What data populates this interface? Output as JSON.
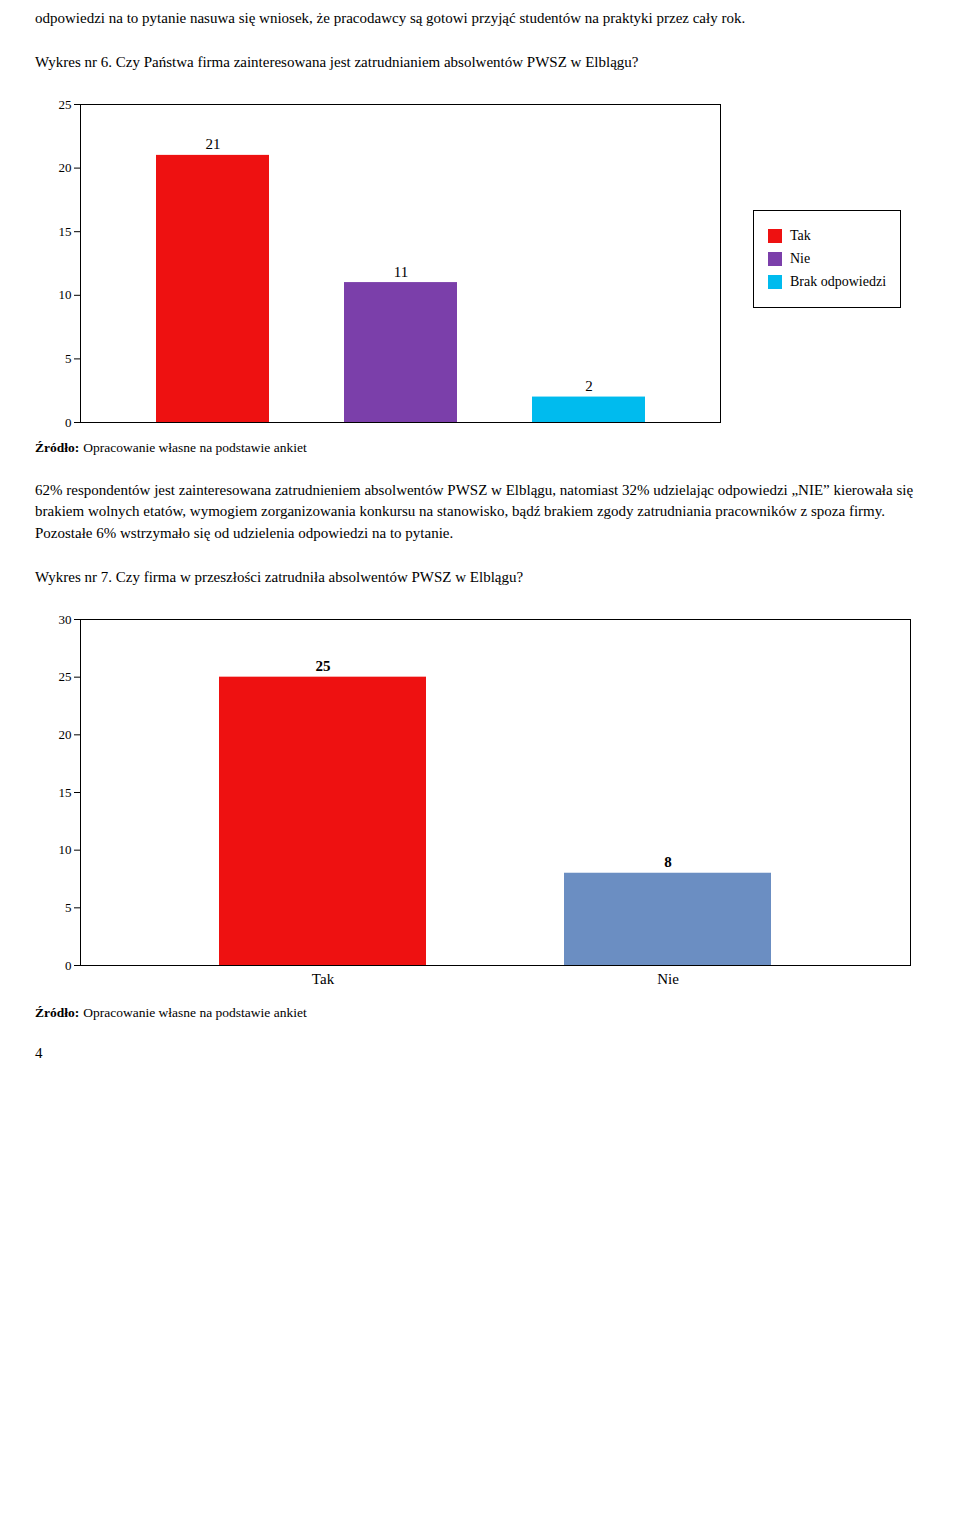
{
  "page_text_top": "odpowiedzi na to pytanie nasuwa się wniosek, że pracodawcy są gotowi przyjąć studentów na praktyki przez cały rok.",
  "chart_data": [
    {
      "type": "bar",
      "title": "Wykres nr 6. Czy Państwa firma zainteresowana jest zatrudnianiem absolwentów PWSZ w Elblągu?",
      "categories": [
        "Tak",
        "Nie",
        "Brak odpowiedzi"
      ],
      "values": [
        21,
        11,
        2
      ],
      "colors": [
        "#EE1111",
        "#7B3FAA",
        "#00BBEE"
      ],
      "ylim": [
        0,
        25
      ],
      "yticks": [
        0,
        5,
        10,
        15,
        20,
        25
      ],
      "legend": "right",
      "tick_labels": "y",
      "data_labels": true,
      "source": [
        "Źródło:",
        "Opracowanie własne na podstawie ankiet"
      ]
    },
    {
      "type": "bar",
      "title": "Wykres nr 7. Czy firma w przeszłości zatrudniła absolwentów PWSZ w Elblągu?",
      "categories": [
        "Tak",
        "Nie"
      ],
      "values": [
        25,
        8
      ],
      "colors": [
        "#EE1111",
        "#6B8EC2"
      ],
      "ylim": [
        0,
        30
      ],
      "yticks": [
        0,
        5,
        10,
        15,
        20,
        25,
        30
      ],
      "data_labels": true,
      "source": [
        "Źródło:",
        "Opracowanie własne na podstawie ankiet"
      ]
    }
  ],
  "body_text": "62% respondentów jest zainteresowana zatrudnieniem absolwentów PWSZ w Elblągu, natomiast 32% udzielając odpowiedzi „NIE” kierowała się brakiem wolnych etatów, wymogiem zorganizowania konkursu na stanowisko, bądź brakiem zgody zatrudniania pracowników z spoza firmy. Pozostałe 6% wstrzymało się od udzielenia odpowiedzi na to pytanie.",
  "page_number": "4"
}
